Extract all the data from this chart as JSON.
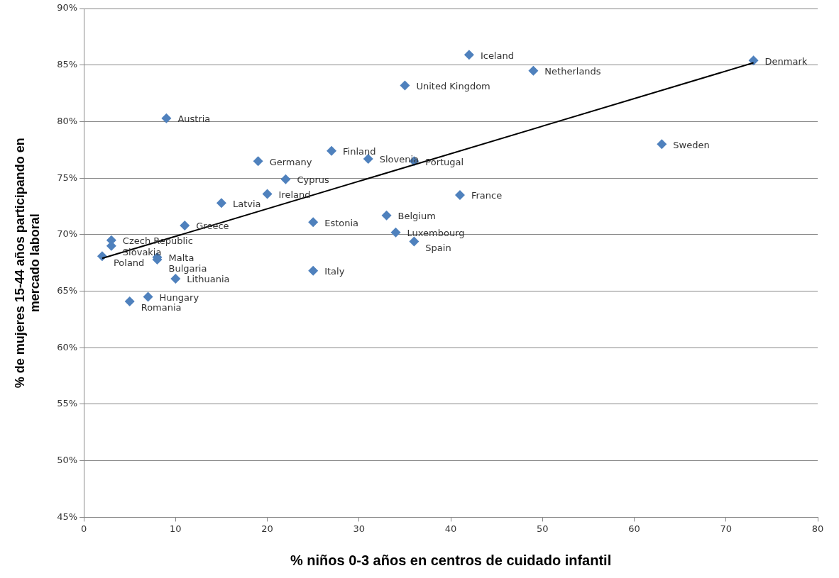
{
  "chart_data": {
    "type": "scatter",
    "xlabel": "% niños 0-3 años en centros de cuidado infantil",
    "ylabel": "% de mujeres 15-44 años participando en mercado laboral",
    "xlim": [
      0,
      80
    ],
    "xticks": [
      0,
      10,
      20,
      30,
      40,
      50,
      60,
      70,
      80
    ],
    "ylim": [
      45,
      90
    ],
    "yticks": [
      {
        "value": 45,
        "label": "45%"
      },
      {
        "value": 50,
        "label": "50%"
      },
      {
        "value": 55,
        "label": "55%"
      },
      {
        "value": 60,
        "label": "60%"
      },
      {
        "value": 65,
        "label": "65%"
      },
      {
        "value": 70,
        "label": "70%"
      },
      {
        "value": 75,
        "label": "75%"
      },
      {
        "value": 80,
        "label": "80%"
      },
      {
        "value": 85,
        "label": "85%"
      },
      {
        "value": 90,
        "label": "90%"
      }
    ],
    "grid": "y",
    "legend": false,
    "marker": "diamond",
    "series": [
      {
        "color": "#4f81bd",
        "x": [
          42,
          49,
          73,
          35,
          9,
          63,
          27,
          31,
          36,
          19,
          22,
          20,
          41,
          15,
          33,
          25,
          11,
          34,
          3,
          3,
          36,
          2,
          8,
          8,
          25,
          10,
          7,
          5
        ],
        "values": [
          85.9,
          84.5,
          85.4,
          83.2,
          80.3,
          78.0,
          77.4,
          76.7,
          76.5,
          76.5,
          74.9,
          73.6,
          73.5,
          72.8,
          71.7,
          71.1,
          70.8,
          70.2,
          69.5,
          69.0,
          69.4,
          68.1,
          68.0,
          67.8,
          66.8,
          66.1,
          64.5,
          64.1
        ]
      },
      {
        "type": "line",
        "color": "#000000",
        "marker": "none",
        "x": [
          2,
          73
        ],
        "values": [
          67.9,
          85.2
        ]
      }
    ],
    "annotations": [
      {
        "text": "Iceland",
        "x": 42,
        "y": 85.9
      },
      {
        "text": "Netherlands",
        "x": 49,
        "y": 84.5
      },
      {
        "text": "Denmark",
        "x": 73,
        "y": 85.4
      },
      {
        "text": "United Kingdom",
        "x": 35,
        "y": 83.2
      },
      {
        "text": "Austria",
        "x": 9,
        "y": 80.3
      },
      {
        "text": "Sweden",
        "x": 63,
        "y": 78.0
      },
      {
        "text": "Finland",
        "x": 27,
        "y": 77.4
      },
      {
        "text": "Slovenia",
        "x": 31,
        "y": 76.7
      },
      {
        "text": "Portugal",
        "x": 36,
        "y": 76.5
      },
      {
        "text": "Germany",
        "x": 19,
        "y": 76.5
      },
      {
        "text": "Cyprus",
        "x": 22,
        "y": 74.9
      },
      {
        "text": "Ireland",
        "x": 20,
        "y": 73.6
      },
      {
        "text": "France",
        "x": 41,
        "y": 73.5
      },
      {
        "text": "Latvia",
        "x": 15,
        "y": 72.8
      },
      {
        "text": "Belgium",
        "x": 33,
        "y": 71.7
      },
      {
        "text": "Estonia",
        "x": 25,
        "y": 71.1
      },
      {
        "text": "Greece",
        "x": 11,
        "y": 70.8
      },
      {
        "text": "Luxembourg",
        "x": 34,
        "y": 70.2
      },
      {
        "text": "Czech Republic",
        "x": 3,
        "y": 69.5
      },
      {
        "text": "Slovakia",
        "x": 3,
        "y": 69.0
      },
      {
        "text": "Spain",
        "x": 36,
        "y": 69.4
      },
      {
        "text": "Poland",
        "x": 2,
        "y": 68.1
      },
      {
        "text": "Malta",
        "x": 8,
        "y": 68.0
      },
      {
        "text": "Bulgaria",
        "x": 8,
        "y": 67.8
      },
      {
        "text": "Italy",
        "x": 25,
        "y": 66.8
      },
      {
        "text": "Lithuania",
        "x": 10,
        "y": 66.1
      },
      {
        "text": "Hungary",
        "x": 7,
        "y": 64.5
      },
      {
        "text": "Romania",
        "x": 5,
        "y": 64.1
      }
    ]
  }
}
